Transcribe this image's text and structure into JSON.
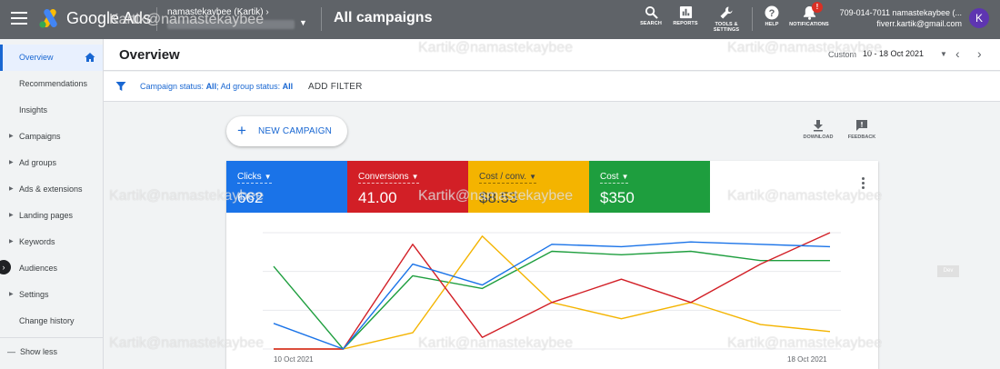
{
  "topbar": {
    "logo_text": "Google Ads",
    "account_name": "namastekaybee (Kartik)",
    "page_title": "All campaigns",
    "buttons": [
      {
        "label": "SEARCH"
      },
      {
        "label": "REPORTS"
      },
      {
        "label": "TOOLS &\nSETTINGS"
      },
      {
        "label": "HELP"
      },
      {
        "label": "NOTIFICATIONS"
      }
    ],
    "notification_badge": "!",
    "user_phone": "709-014-7011 namastekaybee (...",
    "user_email": "fiverr.kartik@gmail.com",
    "avatar_letter": "K"
  },
  "sidebar": {
    "items": [
      {
        "label": "Overview",
        "expandable": false
      },
      {
        "label": "Recommendations",
        "expandable": false
      },
      {
        "label": "Insights",
        "expandable": false
      },
      {
        "label": "Campaigns",
        "expandable": true
      },
      {
        "label": "Ad groups",
        "expandable": true
      },
      {
        "label": "Ads & extensions",
        "expandable": true
      },
      {
        "label": "Landing pages",
        "expandable": true
      },
      {
        "label": "Keywords",
        "expandable": true
      },
      {
        "label": "Audiences",
        "expandable": false
      },
      {
        "label": "Settings",
        "expandable": true
      },
      {
        "label": "Change history",
        "expandable": false
      }
    ],
    "show_less": "Show less"
  },
  "overview": {
    "title": "Overview",
    "date_custom": "Custom",
    "date_range": "10 - 18 Oct 2021"
  },
  "filter": {
    "campaign_status_label": "Campaign status:",
    "campaign_status_value": "All",
    "ad_group_status_label": "Ad group status:",
    "ad_group_status_value": "All",
    "add_filter": "ADD FILTER"
  },
  "main": {
    "new_campaign": "NEW CAMPAIGN",
    "download": "DOWNLOAD",
    "feedback": "FEEDBACK"
  },
  "metrics": [
    {
      "label": "Clicks",
      "value": "662",
      "color": "#1a73e8"
    },
    {
      "label": "Conversions",
      "value": "41.00",
      "color": "#d21f26"
    },
    {
      "label": "Cost / conv.",
      "value": "$8.53",
      "color": "#f4b400"
    },
    {
      "label": "Cost",
      "value": "$350",
      "color": "#1e9e3e"
    }
  ],
  "chart_data": {
    "type": "line",
    "x_start_label": "10 Oct 2021",
    "x_end_label": "18 Oct 2021",
    "x": [
      "10 Oct 2021",
      "11 Oct 2021",
      "12 Oct 2021",
      "13 Oct 2021",
      "14 Oct 2021",
      "15 Oct 2021",
      "16 Oct 2021",
      "17 Oct 2021",
      "18 Oct 2021"
    ],
    "ylim": [
      0,
      1
    ],
    "grid": true,
    "series": [
      {
        "name": "Clicks",
        "color": "#1a73e8",
        "values": [
          0.22,
          0.0,
          0.73,
          0.55,
          0.9,
          0.88,
          0.92,
          0.9,
          0.88
        ]
      },
      {
        "name": "Conversions",
        "color": "#d21f26",
        "values": [
          0.0,
          0.0,
          0.9,
          0.1,
          0.4,
          0.6,
          0.4,
          0.73,
          1.0
        ]
      },
      {
        "name": "Cost / conv.",
        "color": "#f4b400",
        "values": [
          0.0,
          0.0,
          0.14,
          0.97,
          0.4,
          0.26,
          0.4,
          0.21,
          0.15
        ]
      },
      {
        "name": "Cost",
        "color": "#1e9e3e",
        "values": [
          0.71,
          0.0,
          0.63,
          0.52,
          0.84,
          0.81,
          0.84,
          0.76,
          0.76
        ]
      }
    ]
  },
  "watermark": "Kartik@namastekaybee",
  "side_tag": "Dev"
}
